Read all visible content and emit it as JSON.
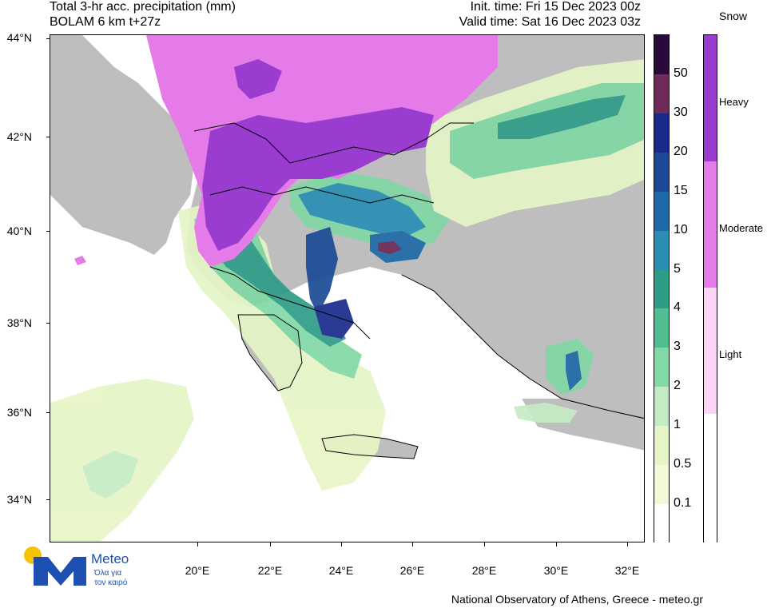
{
  "header": {
    "title_line1": "Total 3-hr acc. precipitation (mm)",
    "title_line2": "BOLAM 6 km t+27z",
    "init_time": "Init. time: Fri 15 Dec 2023 00z",
    "valid_time": "Valid time: Sat 16 Dec 2023 03z"
  },
  "axes": {
    "lat_ticks": [
      "44°N",
      "42°N",
      "40°N",
      "38°N",
      "36°N",
      "34°N"
    ],
    "lon_ticks": [
      "20°E",
      "22°E",
      "24°E",
      "26°E",
      "28°E",
      "30°E",
      "32°E"
    ]
  },
  "precip_scale": {
    "labels": [
      "50",
      "30",
      "20",
      "15",
      "10",
      "5",
      "4",
      "3",
      "2",
      "1",
      "0.5",
      "0.1"
    ],
    "colors": [
      "#2a0a3a",
      "#6e2a58",
      "#1a2a8c",
      "#1c4a96",
      "#1f6aa8",
      "#2b8fb4",
      "#2e9d88",
      "#4fbf92",
      "#82d8a6",
      "#c4ecc4",
      "#e6f5c6",
      "#f1f9d6",
      "#ffffff"
    ]
  },
  "snow_scale": {
    "title": "Snow",
    "labels": [
      "Heavy",
      "Moderate",
      "Light"
    ],
    "colors": [
      "#9a3cd0",
      "#e47be8",
      "#fbd4f6",
      "#ffffff"
    ]
  },
  "colors": {
    "land": "#bebebe",
    "sea": "#ffffff",
    "border": "#000000"
  },
  "logo": {
    "name": "Meteo",
    "tagline1": "Όλα για",
    "tagline2": "τον καιρό"
  },
  "footer": "National Observatory of Athens, Greece - meteo.gr"
}
